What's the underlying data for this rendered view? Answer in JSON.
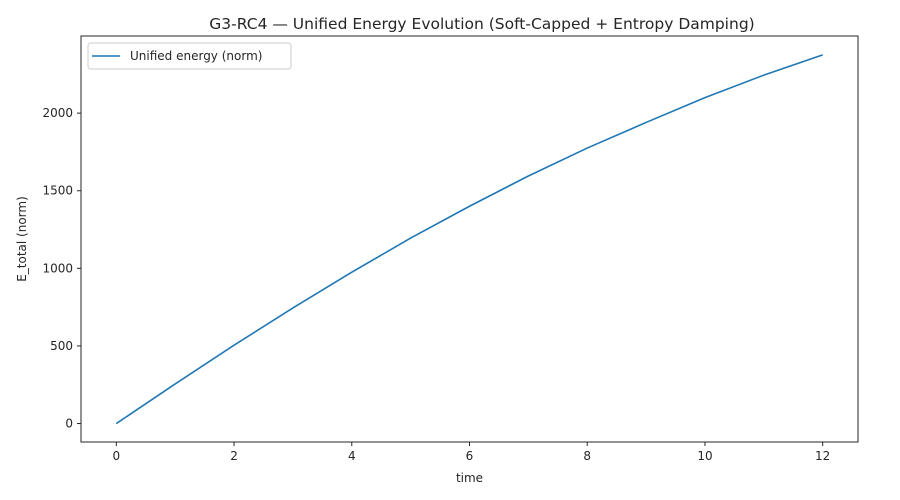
{
  "chart_data": {
    "type": "line",
    "title": "G3-RC4 — Unified Energy Evolution (Soft-Capped + Entropy Damping)",
    "xlabel": "time",
    "ylabel": "E_total (norm)",
    "xlim": [
      -0.6,
      12.6
    ],
    "ylim": [
      -119,
      2497
    ],
    "xticks": [
      0,
      2,
      4,
      6,
      8,
      10,
      12
    ],
    "yticks": [
      0,
      500,
      1000,
      1500,
      2000
    ],
    "grid": false,
    "legend": {
      "placement": "top-left"
    },
    "series": [
      {
        "name": "Unified energy (norm)",
        "color": "#1f77b4",
        "x": [
          0,
          1,
          2,
          3,
          4,
          5,
          6,
          7,
          8,
          9,
          10,
          11,
          12
        ],
        "y": [
          0,
          255,
          505,
          745,
          975,
          1195,
          1400,
          1595,
          1775,
          1940,
          2100,
          2245,
          2375
        ]
      }
    ]
  }
}
